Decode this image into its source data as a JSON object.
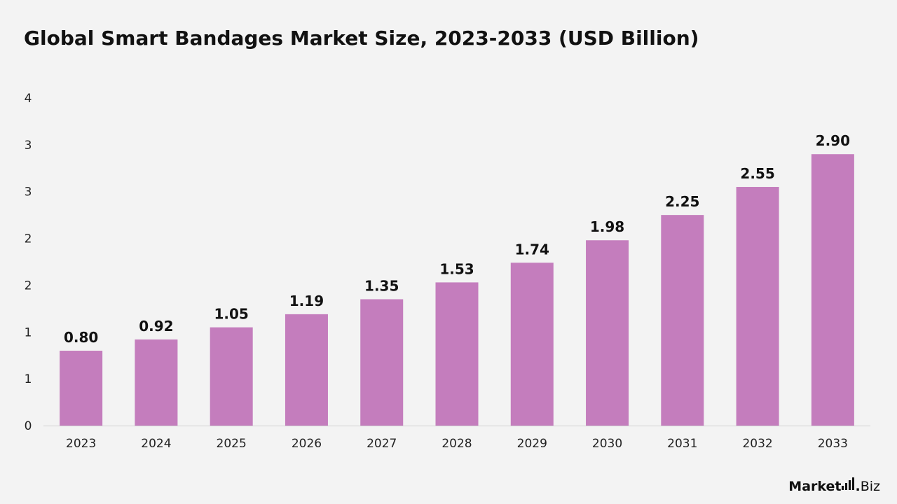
{
  "chart_data": {
    "type": "bar",
    "title": "Global Smart Bandages Market Size, 2023-2033 (USD Billion)",
    "categories": [
      "2023",
      "2024",
      "2025",
      "2026",
      "2027",
      "2028",
      "2029",
      "2030",
      "2031",
      "2032",
      "2033"
    ],
    "values": [
      0.8,
      0.92,
      1.05,
      1.19,
      1.35,
      1.53,
      1.74,
      1.98,
      2.25,
      2.55,
      2.9
    ],
    "value_labels": [
      "0.80",
      "0.92",
      "1.05",
      "1.19",
      "1.35",
      "1.53",
      "1.74",
      "1.98",
      "2.25",
      "2.55",
      "2.90"
    ],
    "y_tick_labels": [
      "0",
      "1",
      "1",
      "2",
      "2",
      "3",
      "3",
      "4"
    ],
    "y_tick_values": [
      0,
      0.5,
      1.0,
      1.5,
      2.0,
      2.5,
      3.0,
      3.5
    ],
    "ylim": [
      0,
      3.5
    ],
    "xlabel": "",
    "ylabel": "",
    "grid": false,
    "bar_color": "#c47dbd",
    "axis_color": "#d0d0d0"
  },
  "brand": {
    "main": "Market",
    "dot": ".",
    "ext": "Biz"
  }
}
